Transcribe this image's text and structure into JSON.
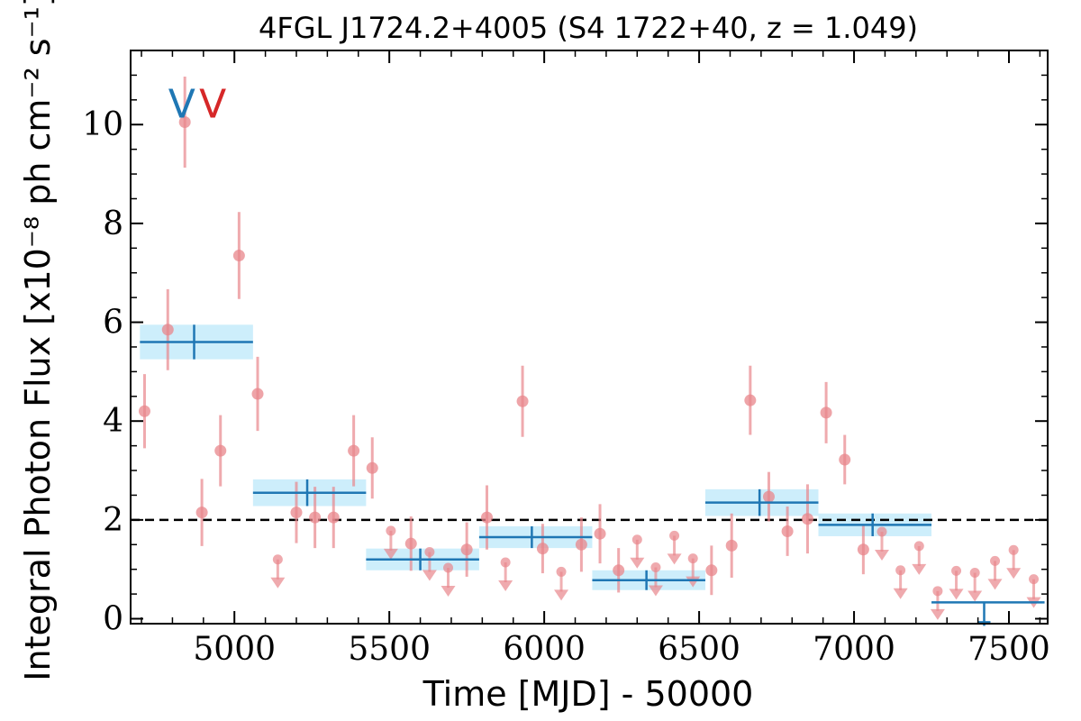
{
  "chart_data": {
    "type": "scatter",
    "title": "4FGL J1724.2+4005 (S4 1722+40, z = 1.049)",
    "xlabel": "Time [MJD] - 50000",
    "ylabel": "Integral Photon Flux [x10⁻⁸ ph cm⁻² s⁻¹]",
    "xlim": [
      4665,
      7625
    ],
    "ylim": [
      -0.1,
      11.5
    ],
    "x_ticks": [
      5000,
      5500,
      6000,
      6500,
      7000,
      7500
    ],
    "x_tick_labels": [
      "5000",
      "5500",
      "6000",
      "6500",
      "7000",
      "7500"
    ],
    "y_ticks": [
      0,
      2,
      4,
      6,
      8,
      10
    ],
    "y_tick_labels": [
      "0",
      "2",
      "4",
      "6",
      "8",
      "10"
    ],
    "reference_line": {
      "y": 2.0,
      "style": "dashed",
      "color": "#000000"
    },
    "markers": [
      {
        "label": "V",
        "x": 4830,
        "y": 10.4,
        "color": "#1f77b4"
      },
      {
        "label": "V",
        "x": 4930,
        "y": 10.4,
        "color": "#d62728"
      }
    ],
    "colors": {
      "points": "#e8868b",
      "bins": "#1f77b4",
      "bin_band": "#cdeefb"
    },
    "series": [
      {
        "name": "",
        "kind": "detections",
        "points": [
          {
            "x": 4710,
            "y": 4.2,
            "err": 0.75
          },
          {
            "x": 4785,
            "y": 5.85,
            "err": 0.82
          },
          {
            "x": 4840,
            "y": 10.05,
            "err": 0.92
          },
          {
            "x": 4895,
            "y": 2.15,
            "err": 0.68
          },
          {
            "x": 4955,
            "y": 3.4,
            "err": 0.72
          },
          {
            "x": 5015,
            "y": 7.35,
            "err": 0.88
          },
          {
            "x": 5075,
            "y": 4.55,
            "err": 0.75
          },
          {
            "x": 5200,
            "y": 2.15,
            "err": 0.62
          },
          {
            "x": 5260,
            "y": 2.05,
            "err": 0.62
          },
          {
            "x": 5320,
            "y": 2.05,
            "err": 0.62
          },
          {
            "x": 5385,
            "y": 3.4,
            "err": 0.72
          },
          {
            "x": 5445,
            "y": 3.05,
            "err": 0.62
          },
          {
            "x": 5570,
            "y": 1.52,
            "err": 0.55
          },
          {
            "x": 5750,
            "y": 1.4,
            "err": 0.55
          },
          {
            "x": 5815,
            "y": 2.05,
            "err": 0.65
          },
          {
            "x": 5930,
            "y": 4.4,
            "err": 0.72
          },
          {
            "x": 5995,
            "y": 1.42,
            "err": 0.5
          },
          {
            "x": 6120,
            "y": 1.5,
            "err": 0.55
          },
          {
            "x": 6180,
            "y": 1.72,
            "err": 0.6
          },
          {
            "x": 6240,
            "y": 0.98,
            "err": 0.45
          },
          {
            "x": 6540,
            "y": 0.98,
            "err": 0.5
          },
          {
            "x": 6605,
            "y": 1.48,
            "err": 0.65
          },
          {
            "x": 6665,
            "y": 4.42,
            "err": 0.7
          },
          {
            "x": 6725,
            "y": 2.47,
            "err": 0.5
          },
          {
            "x": 6785,
            "y": 1.77,
            "err": 0.5
          },
          {
            "x": 6850,
            "y": 2.02,
            "err": 0.7
          },
          {
            "x": 6910,
            "y": 4.17,
            "err": 0.62
          },
          {
            "x": 6970,
            "y": 3.22,
            "err": 0.5
          },
          {
            "x": 7030,
            "y": 1.4,
            "err": 0.5
          }
        ]
      },
      {
        "name": "",
        "kind": "upper_limits",
        "points": [
          {
            "x": 5140,
            "y": 1.2
          },
          {
            "x": 5505,
            "y": 1.78
          },
          {
            "x": 5630,
            "y": 1.35
          },
          {
            "x": 5690,
            "y": 1.03
          },
          {
            "x": 5875,
            "y": 1.14
          },
          {
            "x": 6055,
            "y": 0.95
          },
          {
            "x": 6300,
            "y": 1.6
          },
          {
            "x": 6360,
            "y": 1.04
          },
          {
            "x": 6420,
            "y": 1.68
          },
          {
            "x": 6480,
            "y": 1.22
          },
          {
            "x": 7090,
            "y": 1.76
          },
          {
            "x": 7150,
            "y": 0.98
          },
          {
            "x": 7210,
            "y": 1.47
          },
          {
            "x": 7270,
            "y": 0.56
          },
          {
            "x": 7330,
            "y": 0.97
          },
          {
            "x": 7390,
            "y": 0.93
          },
          {
            "x": 7455,
            "y": 1.17
          },
          {
            "x": 7515,
            "y": 1.39
          },
          {
            "x": 7580,
            "y": 0.8
          }
        ]
      },
      {
        "name": "",
        "kind": "yearly_bins",
        "bins": [
          {
            "x_start": 4695,
            "x_end": 5060,
            "x_center": 4870,
            "y": 5.6,
            "err": 0.35
          },
          {
            "x_start": 5060,
            "x_end": 5425,
            "x_center": 5235,
            "y": 2.55,
            "err": 0.27
          },
          {
            "x_start": 5425,
            "x_end": 5790,
            "x_center": 5600,
            "y": 1.2,
            "err": 0.22
          },
          {
            "x_start": 5790,
            "x_end": 6155,
            "x_center": 5960,
            "y": 1.65,
            "err": 0.22
          },
          {
            "x_start": 6155,
            "x_end": 6520,
            "x_center": 6330,
            "y": 0.78,
            "err": 0.2
          },
          {
            "x_start": 6520,
            "x_end": 6885,
            "x_center": 6695,
            "y": 2.35,
            "err": 0.27
          },
          {
            "x_start": 6885,
            "x_end": 7250,
            "x_center": 7060,
            "y": 1.9,
            "err": 0.23
          },
          {
            "x_start": 7250,
            "x_end": 7615,
            "x_center": 7420,
            "y": 0.33,
            "upper_limit": true
          }
        ]
      }
    ]
  }
}
